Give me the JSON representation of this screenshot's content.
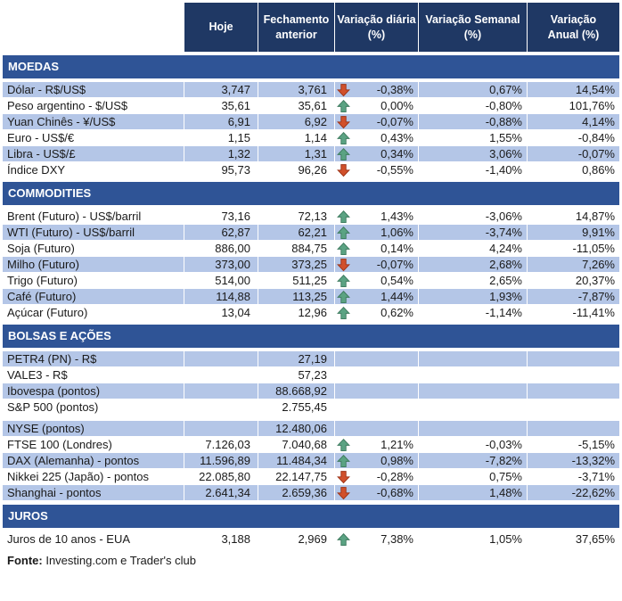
{
  "header": {
    "columns": [
      {
        "id": "hoje",
        "label": "Hoje"
      },
      {
        "id": "fechamento-anterior",
        "label": "Fechamento\nanterior"
      },
      {
        "id": "variacao-diaria",
        "label": "Variação diária\n(%)"
      },
      {
        "id": "variacao-semanal",
        "label": "Variação Semanal\n(%)"
      },
      {
        "id": "variacao-anual",
        "label": "Variação\nAnual (%)"
      }
    ]
  },
  "sections": [
    {
      "title": "MOEDAS",
      "rows": [
        {
          "label": "Dólar - R$/US$",
          "hoje": "3,747",
          "fechamento": "3,761",
          "arrow": "down",
          "diaria": "-0,38%",
          "semanal": "0,67%",
          "anual": "14,54%",
          "shaded": true
        },
        {
          "label": "Peso argentino - $/US$",
          "hoje": "35,61",
          "fechamento": "35,61",
          "arrow": "up",
          "diaria": "0,00%",
          "semanal": "-0,80%",
          "anual": "101,76%",
          "shaded": false
        },
        {
          "label": "Yuan Chinês - ¥/US$",
          "hoje": "6,91",
          "fechamento": "6,92",
          "arrow": "down",
          "diaria": "-0,07%",
          "semanal": "-0,88%",
          "anual": "4,14%",
          "shaded": true
        },
        {
          "label": "Euro - US$/€",
          "hoje": "1,15",
          "fechamento": "1,14",
          "arrow": "up",
          "diaria": "0,43%",
          "semanal": "1,55%",
          "anual": "-0,84%",
          "shaded": false
        },
        {
          "label": "Libra - US$/£",
          "hoje": "1,32",
          "fechamento": "1,31",
          "arrow": "up",
          "diaria": "0,34%",
          "semanal": "3,06%",
          "anual": "-0,07%",
          "shaded": true
        },
        {
          "label": "Índice DXY",
          "hoje": "95,73",
          "fechamento": "96,26",
          "arrow": "down",
          "diaria": "-0,55%",
          "semanal": "-1,40%",
          "anual": "0,86%",
          "shaded": false
        }
      ]
    },
    {
      "title": "COMMODITIES",
      "rows": [
        {
          "label": "Brent (Futuro) - US$/barril",
          "hoje": "73,16",
          "fechamento": "72,13",
          "arrow": "up",
          "diaria": "1,43%",
          "semanal": "-3,06%",
          "anual": "14,87%",
          "shaded": false
        },
        {
          "label": "WTI (Futuro) - US$/barril",
          "hoje": "62,87",
          "fechamento": "62,21",
          "arrow": "up",
          "diaria": "1,06%",
          "semanal": "-3,74%",
          "anual": "9,91%",
          "shaded": true
        },
        {
          "label": "Soja (Futuro)",
          "hoje": "886,00",
          "fechamento": "884,75",
          "arrow": "up",
          "diaria": "0,14%",
          "semanal": "4,24%",
          "anual": "-11,05%",
          "shaded": false
        },
        {
          "label": "Milho (Futuro)",
          "hoje": "373,00",
          "fechamento": "373,25",
          "arrow": "down",
          "diaria": "-0,07%",
          "semanal": "2,68%",
          "anual": "7,26%",
          "shaded": true
        },
        {
          "label": "Trigo (Futuro)",
          "hoje": "514,00",
          "fechamento": "511,25",
          "arrow": "up",
          "diaria": "0,54%",
          "semanal": "2,65%",
          "anual": "20,37%",
          "shaded": false
        },
        {
          "label": "Café (Futuro)",
          "hoje": "114,88",
          "fechamento": "113,25",
          "arrow": "up",
          "diaria": "1,44%",
          "semanal": "1,93%",
          "anual": "-7,87%",
          "shaded": true
        },
        {
          "label": "Açúcar (Futuro)",
          "hoje": "13,04",
          "fechamento": "12,96",
          "arrow": "up",
          "diaria": "0,62%",
          "semanal": "-1,14%",
          "anual": "-11,41%",
          "shaded": false
        }
      ]
    },
    {
      "title": "BOLSAS E AÇÕES",
      "rows": [
        {
          "label": "PETR4 (PN) - R$",
          "hoje": "",
          "fechamento": "27,19",
          "arrow": null,
          "diaria": "",
          "semanal": "",
          "anual": "",
          "shaded": true
        },
        {
          "label": "VALE3 - R$",
          "hoje": "",
          "fechamento": "57,23",
          "arrow": null,
          "diaria": "",
          "semanal": "",
          "anual": "",
          "shaded": false
        },
        {
          "label": "Ibovespa (pontos)",
          "hoje": "",
          "fechamento": "88.668,92",
          "arrow": null,
          "diaria": "",
          "semanal": "",
          "anual": "",
          "shaded": true
        },
        {
          "label": "S&P 500 (pontos)",
          "hoje": "",
          "fechamento": "2.755,45",
          "arrow": null,
          "diaria": "",
          "semanal": "",
          "anual": "",
          "shaded": false
        },
        {
          "spacer": true
        },
        {
          "label": "NYSE (pontos)",
          "hoje": "",
          "fechamento": "12.480,06",
          "arrow": null,
          "diaria": "",
          "semanal": "",
          "anual": "",
          "shaded": true
        },
        {
          "label": "FTSE 100 (Londres)",
          "hoje": "7.126,03",
          "fechamento": "7.040,68",
          "arrow": "up",
          "diaria": "1,21%",
          "semanal": "-0,03%",
          "anual": "-5,15%",
          "shaded": false
        },
        {
          "label": "DAX (Alemanha) - pontos",
          "hoje": "11.596,89",
          "fechamento": "11.484,34",
          "arrow": "up",
          "diaria": "0,98%",
          "semanal": "-7,82%",
          "anual": "-13,32%",
          "shaded": true
        },
        {
          "label": "Nikkei 225 (Japão) - pontos",
          "hoje": "22.085,80",
          "fechamento": "22.147,75",
          "arrow": "down",
          "diaria": "-0,28%",
          "semanal": "0,75%",
          "anual": "-3,71%",
          "shaded": false
        },
        {
          "label": "Shanghai - pontos",
          "hoje": "2.641,34",
          "fechamento": "2.659,36",
          "arrow": "down",
          "diaria": "-0,68%",
          "semanal": "1,48%",
          "anual": "-22,62%",
          "shaded": true
        }
      ]
    },
    {
      "title": "JUROS",
      "rows": [
        {
          "label": "Juros de 10 anos - EUA",
          "hoje": "3,188",
          "fechamento": "2,969",
          "arrow": "up",
          "diaria": "7,38%",
          "semanal": "1,05%",
          "anual": "37,65%",
          "shaded": false
        }
      ]
    }
  ],
  "footer": {
    "source_label": "Fonte:",
    "source_text": " Investing.com e Trader's club"
  },
  "colors": {
    "header_bg": "#1F3864",
    "section_bg": "#2F5496",
    "row_shaded": "#B4C6E7",
    "row_white": "#FFFFFF",
    "arrow_up_fill": "#5BA383",
    "arrow_up_border": "#3D7A5E",
    "arrow_down_fill": "#D1502B",
    "arrow_down_border": "#9C3317"
  }
}
